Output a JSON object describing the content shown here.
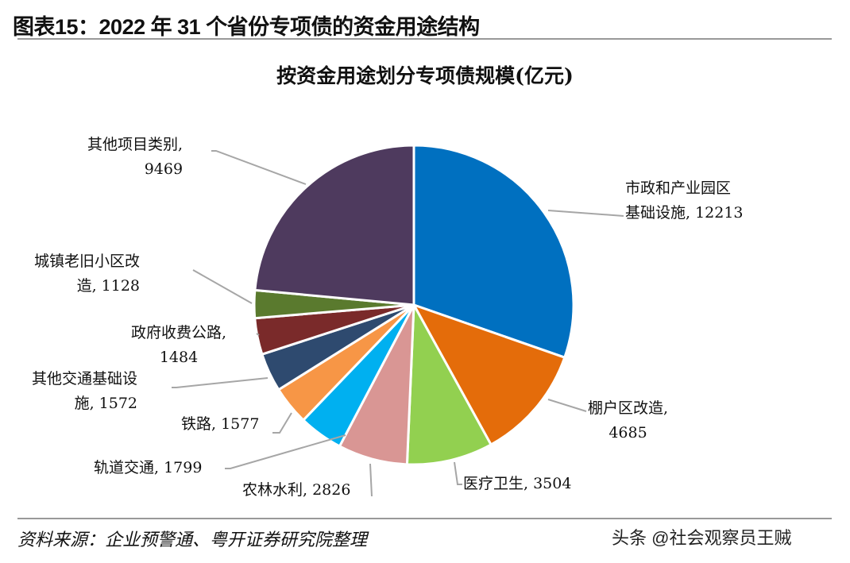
{
  "figure_title": "图表15：2022 年 31 个省份专项债的资金用途结构",
  "source": "资料来源：企业预警通、粤开证券研究院整理",
  "watermark": "头条 @社会观察员王贼",
  "chart_data": {
    "type": "pie",
    "title": "按资金用途划分专项债规模(亿元)",
    "start": "12 o'clock, clockwise",
    "slices": [
      {
        "label": "市政和产业园区基础设施",
        "label_lines": [
          "市政和产业园区",
          "基础设施, 12213"
        ],
        "value": 12213,
        "color": "#0070C0"
      },
      {
        "label": "棚户区改造",
        "label_lines": [
          "棚户区改造,",
          "4685"
        ],
        "value": 4685,
        "color": "#E46C0A"
      },
      {
        "label": "医疗卫生",
        "label_lines": [
          "医疗卫生, 3504"
        ],
        "value": 3504,
        "color": "#92D050"
      },
      {
        "label": "农林水利",
        "label_lines": [
          "农林水利, 2826"
        ],
        "value": 2826,
        "color": "#D99694"
      },
      {
        "label": "轨道交通",
        "label_lines": [
          "轨道交通, 1799"
        ],
        "value": 1799,
        "color": "#00B0F0"
      },
      {
        "label": "铁路",
        "label_lines": [
          "铁路, 1577"
        ],
        "value": 1577,
        "color": "#F79646"
      },
      {
        "label": "其他交通基础设施",
        "label_lines": [
          "其他交通基础设",
          "施, 1572"
        ],
        "value": 1572,
        "color": "#2E4A6F"
      },
      {
        "label": "政府收费公路",
        "label_lines": [
          "政府收费公路,",
          "1484"
        ],
        "value": 1484,
        "color": "#7A2A2A"
      },
      {
        "label": "城镇老旧小区改造",
        "label_lines": [
          "城镇老旧小区改",
          "造, 1128"
        ],
        "value": 1128,
        "color": "#5A7A2E"
      },
      {
        "label": "其他项目类别",
        "label_lines": [
          "其他项目类别,",
          "9469"
        ],
        "value": 9469,
        "color": "#4E3A5E"
      }
    ]
  }
}
